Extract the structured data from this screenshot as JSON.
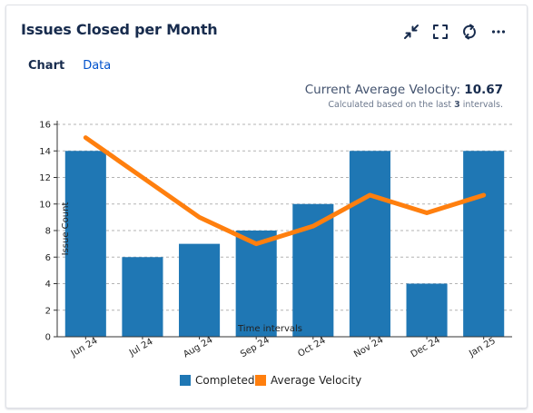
{
  "card": {
    "title": "Issues Closed per Month",
    "tabs": {
      "chart": "Chart",
      "data": "Data"
    },
    "toolbar": {
      "collapse_icon": "collapse-icon",
      "fullscreen_icon": "fullscreen-icon",
      "refresh_icon": "refresh-icon",
      "more_icon": "more-icon"
    }
  },
  "velocity": {
    "label": "Current Average Velocity:",
    "value": "10.67",
    "note_prefix": "Calculated based on the last",
    "note_count": "3",
    "note_suffix": "intervals."
  },
  "chart_data": {
    "type": "bar",
    "categories": [
      "Jun 24",
      "Jul 24",
      "Aug 24",
      "Sep 24",
      "Oct 24",
      "Nov 24",
      "Dec 24",
      "Jan 25"
    ],
    "series": [
      {
        "name": "Completed",
        "type": "bar",
        "color": "#1f77b4",
        "values": [
          14,
          6,
          7,
          8,
          10,
          14,
          4,
          14
        ]
      },
      {
        "name": "Average Velocity",
        "type": "line",
        "color": "#ff7f0e",
        "values": [
          15,
          12,
          9,
          7,
          8.33,
          10.67,
          9.33,
          10.67
        ]
      }
    ],
    "xlabel": "Time intervals",
    "ylabel": "Issue Count",
    "ylim": [
      0,
      16
    ],
    "yticks": [
      0,
      2,
      4,
      6,
      8,
      10,
      12,
      14,
      16
    ],
    "grid": true,
    "legend": "bottom"
  }
}
